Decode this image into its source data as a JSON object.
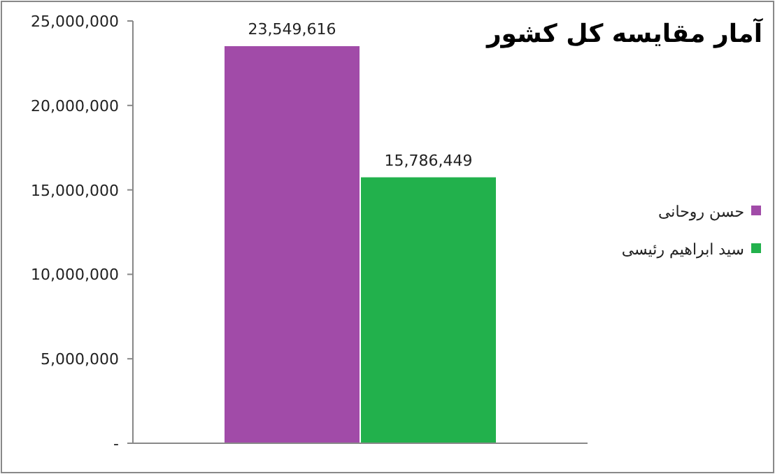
{
  "chart_data": {
    "type": "bar",
    "title": "آمار مقایسه کل کشور",
    "categories": [
      null
    ],
    "series": [
      {
        "name": "حسن روحانی",
        "color": "#a14ba8",
        "values": [
          23549616
        ],
        "value_labels": [
          "23,549,616"
        ]
      },
      {
        "name": "سید ابراهیم رئیسی",
        "color": "#22b14c",
        "values": [
          15786449
        ],
        "value_labels": [
          "15,786,449"
        ]
      }
    ],
    "ylim": [
      0,
      25000000
    ],
    "yticks": [
      {
        "value": 0,
        "label": "-"
      },
      {
        "value": 5000000,
        "label": "5,000,000"
      },
      {
        "value": 10000000,
        "label": "10,000,000"
      },
      {
        "value": 15000000,
        "label": "15,000,000"
      },
      {
        "value": 20000000,
        "label": "20,000,000"
      },
      {
        "value": 25000000,
        "label": "25,000,000"
      }
    ],
    "grid": false,
    "legend": "right",
    "tick_labels": "y"
  }
}
